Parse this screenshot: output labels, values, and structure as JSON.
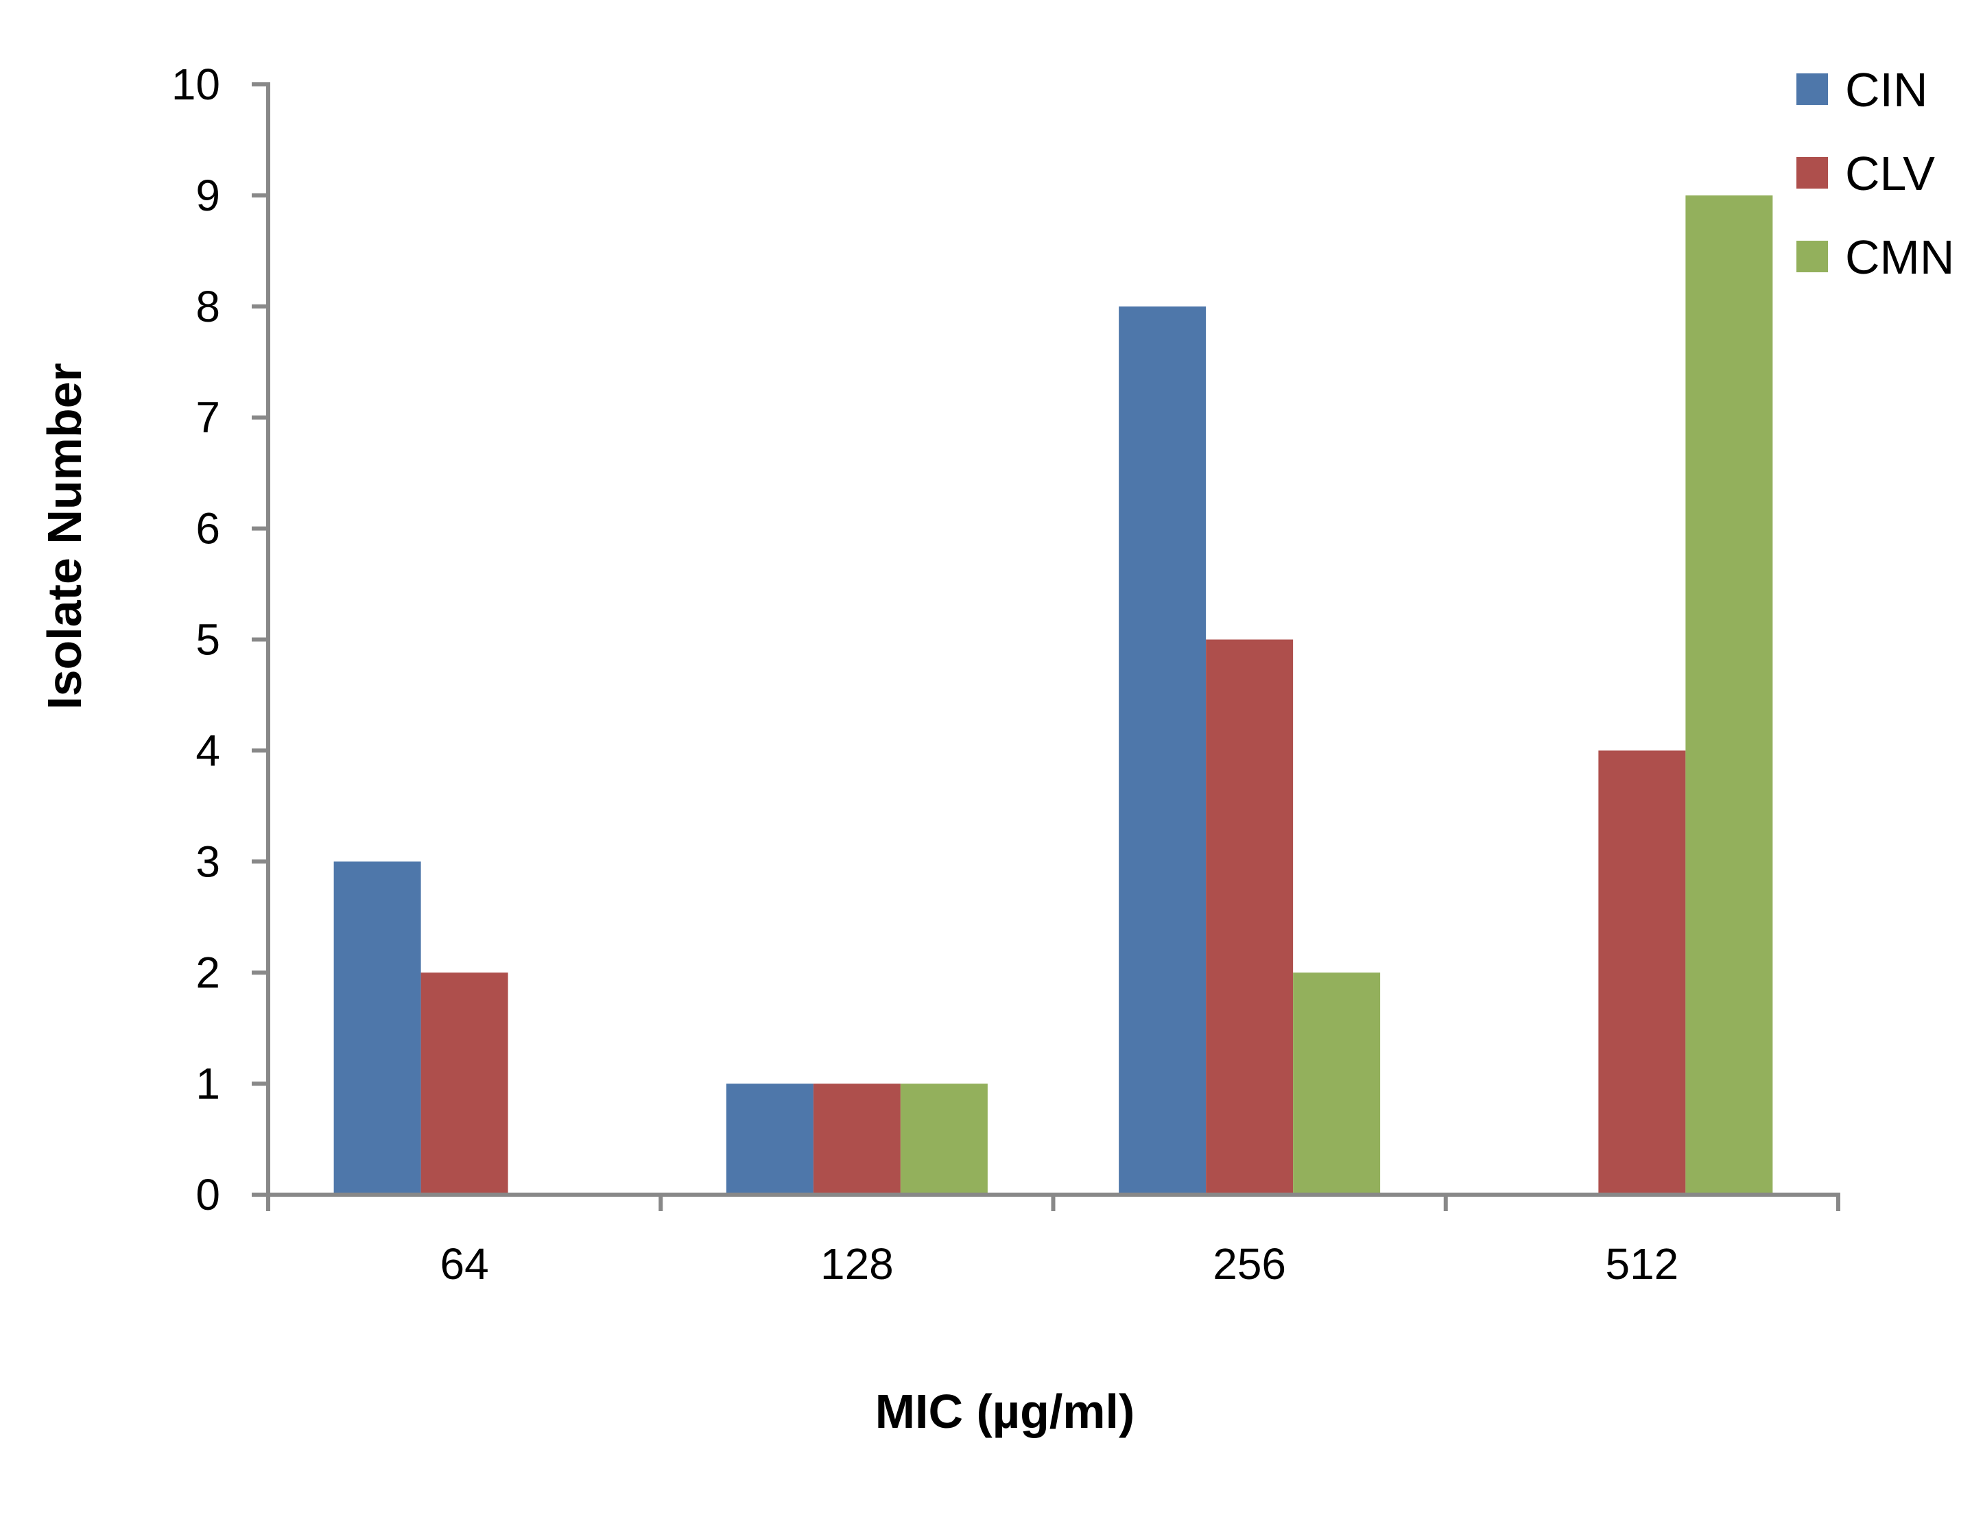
{
  "chart_data": {
    "type": "bar",
    "categories": [
      "64",
      "128",
      "256",
      "512"
    ],
    "series": [
      {
        "name": "CIN",
        "values": [
          3,
          1,
          8,
          0
        ]
      },
      {
        "name": "CLV",
        "values": [
          2,
          1,
          5,
          4
        ]
      },
      {
        "name": "CMN",
        "values": [
          0,
          1,
          2,
          9
        ]
      }
    ],
    "colors": [
      "#4E77AA",
      "#AE4F4C",
      "#93B05C"
    ],
    "title": "",
    "xlabel": "MIC (µg/ml)",
    "ylabel": "Isolate Number",
    "ylim": [
      0,
      10
    ],
    "yticks": [
      0,
      1,
      2,
      3,
      4,
      5,
      6,
      7,
      8,
      9,
      10
    ],
    "grid": false,
    "legend": "top-right"
  }
}
